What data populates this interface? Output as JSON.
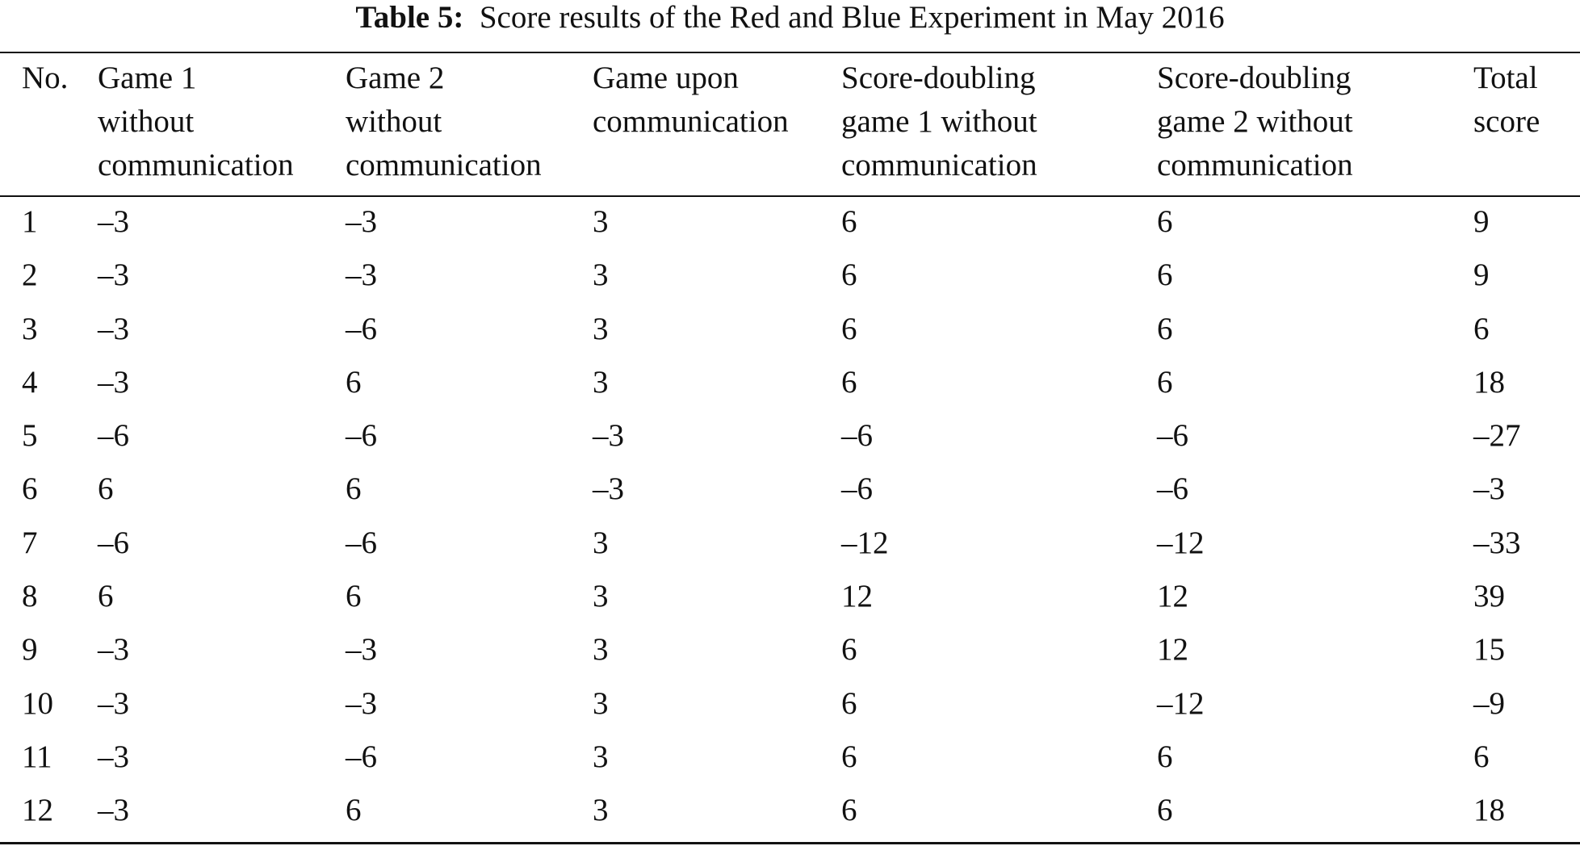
{
  "caption": {
    "label": "Table 5:",
    "text": "Score results of the Red and Blue Experiment in May 2016"
  },
  "columns": [
    "No.",
    "Game 1\nwithout\ncommunication",
    "Game 2\nwithout\ncommunication",
    "Game upon\ncommunication",
    "Score-doubling\ngame 1 without\ncommunication",
    "Score-doubling\ngame 2 without\ncommunication",
    "Total\nscore"
  ],
  "rows": [
    [
      "1",
      "–3",
      "–3",
      "3",
      "6",
      "6",
      "9"
    ],
    [
      "2",
      "–3",
      "–3",
      "3",
      "6",
      "6",
      "9"
    ],
    [
      "3",
      "–3",
      "–6",
      "3",
      "6",
      "6",
      "6"
    ],
    [
      "4",
      "–3",
      "6",
      "3",
      "6",
      "6",
      "18"
    ],
    [
      "5",
      "–6",
      "–6",
      "–3",
      "–6",
      "–6",
      "–27"
    ],
    [
      "6",
      "6",
      "6",
      "–3",
      "–6",
      "–6",
      "–3"
    ],
    [
      "7",
      "–6",
      "–6",
      "3",
      "–12",
      "–12",
      "–33"
    ],
    [
      "8",
      "6",
      "6",
      "3",
      "12",
      "12",
      "39"
    ],
    [
      "9",
      "–3",
      "–3",
      "3",
      "6",
      "12",
      "15"
    ],
    [
      "10",
      "–3",
      "–3",
      "3",
      "6",
      "–12",
      "–9"
    ],
    [
      "11",
      "–3",
      "–6",
      "3",
      "6",
      "6",
      "6"
    ],
    [
      "12",
      "–3",
      "6",
      "3",
      "6",
      "6",
      "18"
    ]
  ]
}
